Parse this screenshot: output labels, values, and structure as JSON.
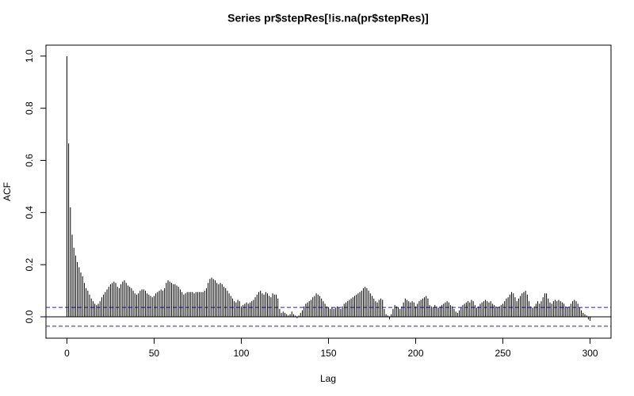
{
  "chart_data": {
    "type": "acf",
    "title": "Series  pr$stepRes[!is.na(pr$stepRes)]",
    "xlabel": "Lag",
    "ylabel": "ACF",
    "xlim": [
      -12,
      312
    ],
    "ylim": [
      -0.082,
      1.042
    ],
    "xticks": [
      0,
      50,
      100,
      150,
      200,
      250,
      300
    ],
    "yticks": [
      {
        "value": 0,
        "label": "0.0"
      },
      0.2,
      0.4,
      0.6,
      0.8,
      {
        "value": 1,
        "label": "1.0"
      }
    ],
    "color": "#000000",
    "ci_color": "#2020c0",
    "ci_lines": [
      0.036,
      -0.036
    ],
    "x": [
      0,
      1,
      2,
      3,
      4,
      5,
      6,
      7,
      8,
      9,
      10,
      11,
      12,
      13,
      14,
      15,
      16,
      17,
      18,
      19,
      20,
      21,
      22,
      23,
      24,
      25,
      26,
      27,
      28,
      29,
      30,
      31,
      32,
      33,
      34,
      35,
      36,
      37,
      38,
      39,
      40,
      41,
      42,
      43,
      44,
      45,
      46,
      47,
      48,
      49,
      50,
      51,
      52,
      53,
      54,
      55,
      56,
      57,
      58,
      59,
      60,
      61,
      62,
      63,
      64,
      65,
      66,
      67,
      68,
      69,
      70,
      71,
      72,
      73,
      74,
      75,
      76,
      77,
      78,
      79,
      80,
      81,
      82,
      83,
      84,
      85,
      86,
      87,
      88,
      89,
      90,
      91,
      92,
      93,
      94,
      95,
      96,
      97,
      98,
      99,
      100,
      101,
      102,
      103,
      104,
      105,
      106,
      107,
      108,
      109,
      110,
      111,
      112,
      113,
      114,
      115,
      116,
      117,
      118,
      119,
      120,
      121,
      122,
      123,
      124,
      125,
      126,
      127,
      128,
      129,
      130,
      131,
      132,
      133,
      134,
      135,
      136,
      137,
      138,
      139,
      140,
      141,
      142,
      143,
      144,
      145,
      146,
      147,
      148,
      149,
      150,
      151,
      152,
      153,
      154,
      155,
      156,
      157,
      158,
      159,
      160,
      161,
      162,
      163,
      164,
      165,
      166,
      167,
      168,
      169,
      170,
      171,
      172,
      173,
      174,
      175,
      176,
      177,
      178,
      179,
      180,
      181,
      182,
      183,
      184,
      185,
      186,
      187,
      188,
      189,
      190,
      191,
      192,
      193,
      194,
      195,
      196,
      197,
      198,
      199,
      200,
      201,
      202,
      203,
      204,
      205,
      206,
      207,
      208,
      209,
      210,
      211,
      212,
      213,
      214,
      215,
      216,
      217,
      218,
      219,
      220,
      221,
      222,
      223,
      224,
      225,
      226,
      227,
      228,
      229,
      230,
      231,
      232,
      233,
      234,
      235,
      236,
      237,
      238,
      239,
      240,
      241,
      242,
      243,
      244,
      245,
      246,
      247,
      248,
      249,
      250,
      251,
      252,
      253,
      254,
      255,
      256,
      257,
      258,
      259,
      260,
      261,
      262,
      263,
      264,
      265,
      266,
      267,
      268,
      269,
      270,
      271,
      272,
      273,
      274,
      275,
      276,
      277,
      278,
      279,
      280,
      281,
      282,
      283,
      284,
      285,
      286,
      287,
      288,
      289,
      290,
      291,
      292,
      293,
      294,
      295,
      296,
      297,
      298,
      299,
      300
    ],
    "values": [
      1.0,
      0.665,
      0.42,
      0.315,
      0.265,
      0.235,
      0.21,
      0.19,
      0.17,
      0.155,
      0.13,
      0.11,
      0.1,
      0.085,
      0.07,
      0.06,
      0.05,
      0.045,
      0.05,
      0.06,
      0.075,
      0.085,
      0.095,
      0.105,
      0.115,
      0.125,
      0.13,
      0.135,
      0.13,
      0.115,
      0.11,
      0.125,
      0.135,
      0.14,
      0.13,
      0.12,
      0.115,
      0.11,
      0.1,
      0.09,
      0.085,
      0.09,
      0.1,
      0.105,
      0.105,
      0.1,
      0.09,
      0.085,
      0.08,
      0.075,
      0.08,
      0.09,
      0.095,
      0.1,
      0.105,
      0.1,
      0.11,
      0.13,
      0.14,
      0.135,
      0.13,
      0.125,
      0.125,
      0.12,
      0.115,
      0.105,
      0.095,
      0.085,
      0.09,
      0.095,
      0.095,
      0.095,
      0.095,
      0.09,
      0.095,
      0.095,
      0.095,
      0.095,
      0.095,
      0.1,
      0.11,
      0.13,
      0.145,
      0.15,
      0.145,
      0.14,
      0.13,
      0.125,
      0.13,
      0.125,
      0.115,
      0.11,
      0.1,
      0.09,
      0.08,
      0.07,
      0.06,
      0.055,
      0.065,
      0.06,
      0.04,
      0.045,
      0.05,
      0.055,
      0.05,
      0.055,
      0.06,
      0.065,
      0.075,
      0.085,
      0.095,
      0.1,
      0.09,
      0.085,
      0.095,
      0.09,
      0.08,
      0.075,
      0.09,
      0.085,
      0.085,
      0.07,
      0.03,
      0.015,
      0.02,
      0.015,
      0.01,
      0.005,
      0.01,
      0.02,
      0.01,
      0.005,
      -0.005,
      0.005,
      0.015,
      0.025,
      0.04,
      0.05,
      0.055,
      0.06,
      0.065,
      0.075,
      0.08,
      0.09,
      0.085,
      0.08,
      0.07,
      0.06,
      0.05,
      0.04,
      0.035,
      0.03,
      0.035,
      0.03,
      0.035,
      0.04,
      0.035,
      0.03,
      0.04,
      0.05,
      0.055,
      0.06,
      0.065,
      0.07,
      0.075,
      0.08,
      0.085,
      0.09,
      0.095,
      0.1,
      0.11,
      0.115,
      0.11,
      0.1,
      0.09,
      0.08,
      0.07,
      0.06,
      0.055,
      0.065,
      0.07,
      0.065,
      0.03,
      0.01,
      0.005,
      -0.01,
      0.01,
      0.03,
      0.045,
      0.04,
      0.035,
      0.03,
      0.04,
      0.055,
      0.07,
      0.065,
      0.06,
      0.055,
      0.06,
      0.055,
      0.04,
      0.05,
      0.06,
      0.065,
      0.07,
      0.075,
      0.08,
      0.07,
      0.045,
      0.04,
      0.035,
      0.045,
      0.04,
      0.035,
      0.04,
      0.045,
      0.05,
      0.055,
      0.06,
      0.055,
      0.045,
      0.04,
      0.03,
      0.02,
      0.015,
      0.025,
      0.035,
      0.045,
      0.05,
      0.055,
      0.06,
      0.055,
      0.065,
      0.06,
      0.045,
      0.035,
      0.04,
      0.05,
      0.055,
      0.06,
      0.065,
      0.06,
      0.055,
      0.06,
      0.05,
      0.045,
      0.04,
      0.035,
      0.04,
      0.045,
      0.05,
      0.06,
      0.07,
      0.075,
      0.085,
      0.095,
      0.09,
      0.075,
      0.06,
      0.07,
      0.08,
      0.09,
      0.095,
      0.1,
      0.085,
      0.06,
      0.04,
      0.035,
      0.04,
      0.05,
      0.06,
      0.05,
      0.06,
      0.075,
      0.09,
      0.09,
      0.07,
      0.055,
      0.05,
      0.06,
      0.065,
      0.06,
      0.065,
      0.06,
      0.055,
      0.05,
      0.04,
      0.035,
      0.04,
      0.05,
      0.06,
      0.065,
      0.06,
      0.05,
      0.035,
      0.025,
      0.015,
      0.01,
      0.005,
      -0.01,
      -0.015
    ]
  }
}
